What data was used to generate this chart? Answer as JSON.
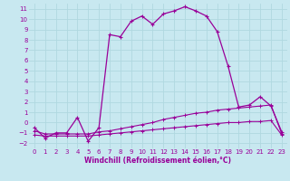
{
  "xlabel": "Windchill (Refroidissement éolien,°C)",
  "bg_color": "#c8e8f0",
  "grid_color": "#b0d8e0",
  "line_color": "#990099",
  "xlim": [
    -0.5,
    23.5
  ],
  "ylim": [
    -2.5,
    11.5
  ],
  "xticks": [
    0,
    1,
    2,
    3,
    4,
    5,
    6,
    7,
    8,
    9,
    10,
    11,
    12,
    13,
    14,
    15,
    16,
    17,
    18,
    19,
    20,
    21,
    22,
    23
  ],
  "yticks": [
    -2,
    -1,
    0,
    1,
    2,
    3,
    4,
    5,
    6,
    7,
    8,
    9,
    10,
    11
  ],
  "curve1_x": [
    0,
    1,
    2,
    3,
    4,
    5,
    6,
    7,
    8,
    9,
    10,
    11,
    12,
    13,
    14,
    15,
    16,
    17,
    18,
    19,
    20,
    21,
    22,
    23
  ],
  "curve1_y": [
    -0.5,
    -1.5,
    -1.0,
    -1.0,
    0.5,
    -1.8,
    -0.5,
    8.5,
    8.3,
    9.8,
    10.3,
    9.5,
    10.5,
    10.8,
    11.2,
    10.8,
    10.3,
    8.8,
    5.5,
    1.5,
    1.7,
    2.5,
    1.6,
    -0.9
  ],
  "curve2_x": [
    0,
    1,
    2,
    3,
    4,
    5,
    6,
    7,
    8,
    9,
    10,
    11,
    12,
    13,
    14,
    15,
    16,
    17,
    18,
    19,
    20,
    21,
    22,
    23
  ],
  "curve2_y": [
    -0.8,
    -1.1,
    -1.1,
    -1.1,
    -1.1,
    -1.1,
    -0.9,
    -0.8,
    -0.6,
    -0.4,
    -0.2,
    0.0,
    0.3,
    0.5,
    0.7,
    0.9,
    1.0,
    1.2,
    1.3,
    1.4,
    1.5,
    1.6,
    1.7,
    -1.1
  ],
  "curve3_x": [
    0,
    1,
    2,
    3,
    4,
    5,
    6,
    7,
    8,
    9,
    10,
    11,
    12,
    13,
    14,
    15,
    16,
    17,
    18,
    19,
    20,
    21,
    22,
    23
  ],
  "curve3_y": [
    -1.2,
    -1.3,
    -1.3,
    -1.3,
    -1.3,
    -1.3,
    -1.2,
    -1.1,
    -1.0,
    -0.9,
    -0.8,
    -0.7,
    -0.6,
    -0.5,
    -0.4,
    -0.3,
    -0.2,
    -0.1,
    0.0,
    0.0,
    0.1,
    0.1,
    0.2,
    -1.2
  ]
}
